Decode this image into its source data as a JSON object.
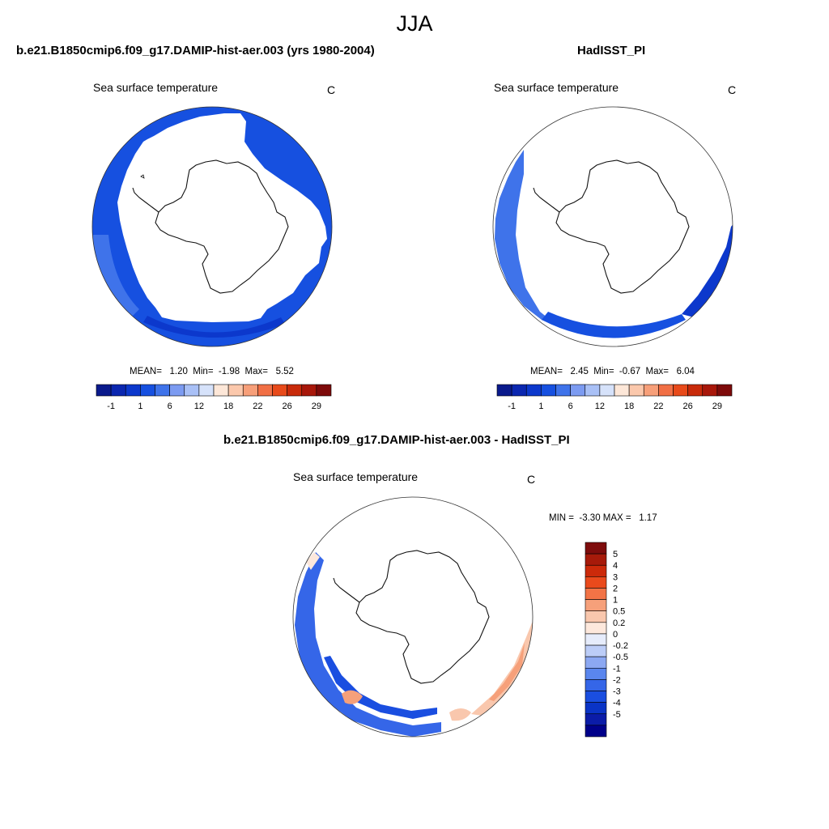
{
  "title": "JJA",
  "colors": {
    "bg": "#ffffff",
    "land": "#ffffff",
    "coast": "#111111",
    "abs_palette": [
      "#0a1a8c",
      "#0b27b0",
      "#0c38cc",
      "#1650e0",
      "#3f73ea",
      "#7c9bf1",
      "#a9c0f6",
      "#d6e2fa",
      "#fde7d8",
      "#fbc8ac",
      "#f79f79",
      "#f16f45",
      "#e84a1a",
      "#c82a0a",
      "#a8170a",
      "#7d0a0a"
    ],
    "diff_palette": [
      "#00008a",
      "#0b1ca8",
      "#0a34c6",
      "#1a4ee0",
      "#3566e8",
      "#5a86ee",
      "#8ca8f2",
      "#bccdf7",
      "#e6ecfb",
      "#fde8dc",
      "#f9c7ad",
      "#f6a07a",
      "#f27346",
      "#ea4a1c",
      "#cc2a0a",
      "#a71a0a",
      "#7e0c0c"
    ]
  },
  "panels": {
    "model": {
      "title": "b.e21.B1850cmip6.f09_g17.DAMIP-hist-aer.003 (yrs 1980-2004)",
      "variable": "Sea surface temperature",
      "units": "C",
      "stats": "MEAN=   1.20  Min=  -1.98  Max=   5.52",
      "colorbar_labels": [
        "-1",
        "1",
        "6",
        "12",
        "18",
        "22",
        "26",
        "29"
      ]
    },
    "obs": {
      "title": "HadISST_PI",
      "variable": "Sea surface temperature",
      "units": "C",
      "stats": "MEAN=   2.45  Min=  -0.67  Max=   6.04",
      "colorbar_labels": [
        "-1",
        "1",
        "6",
        "12",
        "18",
        "22",
        "26",
        "29"
      ]
    },
    "diff": {
      "title": "b.e21.B1850cmip6.f09_g17.DAMIP-hist-aer.003 - HadISST_PI",
      "variable": "Sea surface temperature",
      "units": "C",
      "stats": "MIN =  -3.30 MAX =   1.17",
      "colorbar_labels": [
        "5",
        "4",
        "3",
        "2",
        "1",
        "0.5",
        "0.2",
        "0",
        "-0.2",
        "-0.5",
        "-1",
        "-2",
        "-3",
        "-4",
        "-5"
      ]
    }
  }
}
